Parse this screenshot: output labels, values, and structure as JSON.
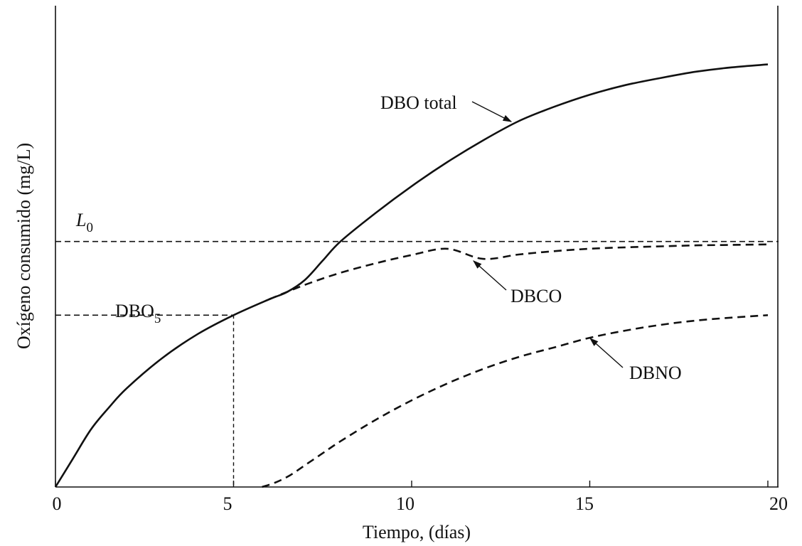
{
  "chart_data": {
    "type": "line",
    "xlabel": "Tiempo, (días)",
    "ylabel": "Oxígeno consumido (mg/L)",
    "xlim": [
      0,
      20.3
    ],
    "ylim": [
      0,
      1.0
    ],
    "x_ticks": [
      "0",
      "5",
      "10",
      "15",
      "20"
    ],
    "y_ticks": [],
    "grid": false,
    "series": [
      {
        "name": "DBO total",
        "style": "solid",
        "x": [
          0,
          0.5,
          1,
          1.5,
          2,
          3,
          4,
          5,
          6,
          6.5,
          7,
          7.5,
          8,
          9,
          10,
          11,
          12,
          13,
          14,
          15,
          16,
          17,
          18,
          19,
          20
        ],
        "y": [
          0,
          0.06,
          0.12,
          0.165,
          0.205,
          0.268,
          0.318,
          0.357,
          0.39,
          0.405,
          0.43,
          0.47,
          0.51,
          0.57,
          0.625,
          0.675,
          0.72,
          0.76,
          0.79,
          0.815,
          0.835,
          0.85,
          0.863,
          0.872,
          0.878
        ]
      },
      {
        "name": "DBCO",
        "style": "dashed",
        "x": [
          6,
          7,
          8,
          9,
          10,
          11,
          12,
          13,
          14,
          15,
          16,
          17,
          18,
          19,
          20
        ],
        "y": [
          0.39,
          0.42,
          0.445,
          0.465,
          0.482,
          0.495,
          0.474,
          0.483,
          0.49,
          0.495,
          0.498,
          0.5,
          0.502,
          0.503,
          0.504
        ]
      },
      {
        "name": "DBNO",
        "style": "dashed",
        "x": [
          5.8,
          6.2,
          6.6,
          7,
          7.5,
          8,
          9,
          10,
          11,
          12,
          13,
          14,
          15,
          16,
          17,
          18,
          19,
          20
        ],
        "y": [
          0,
          0.01,
          0.025,
          0.045,
          0.07,
          0.095,
          0.14,
          0.18,
          0.215,
          0.245,
          0.27,
          0.29,
          0.31,
          0.325,
          0.337,
          0.346,
          0.352,
          0.357
        ]
      }
    ],
    "reference_lines": {
      "L0": 0.51,
      "DBO5_day": 5,
      "DBO5_value": 0.357
    },
    "annotations": {
      "dbo_total": "DBO total",
      "dbco": "DBCO",
      "dbno": "DBNO",
      "l0_base": "L",
      "l0_sub": "0",
      "dbo5_base": "DBO",
      "dbo5_sub": "5"
    }
  }
}
